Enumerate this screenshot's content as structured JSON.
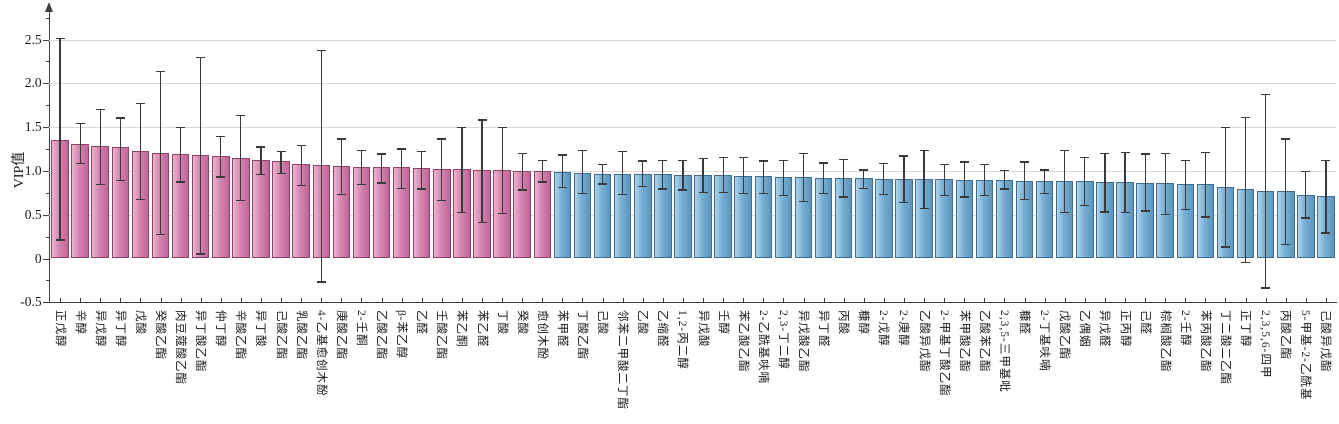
{
  "chart_data": {
    "type": "bar",
    "title": "",
    "xlabel": "",
    "ylabel": "VIP值",
    "ylim": [
      -0.5,
      2.9
    ],
    "grid": "horizontal",
    "legend_position": "none",
    "ytick_labels": [
      "-0.5",
      "0",
      "0.5",
      "1.0",
      "1.5",
      "2.0",
      "2.5"
    ],
    "yticks": [
      -0.5,
      0,
      0.5,
      1.0,
      1.5,
      2.0,
      2.5
    ],
    "error_bar_color": "#3a3a3a",
    "bar_groups": [
      {
        "name": "high-vip-pink",
        "color": "#d584b1",
        "color_light": "#eab5ce",
        "color_dark": "#c06699",
        "border_color": "#8f4168",
        "start_index": 0,
        "count": 25
      },
      {
        "name": "low-vip-blue",
        "color": "#76afd3",
        "color_light": "#b0d2e8",
        "color_dark": "#5d95bd",
        "border_color": "#3d6e94",
        "start_index": 25,
        "count": 39
      }
    ],
    "categories": [
      "正戊醇",
      "辛醇",
      "异戊醇",
      "异丁醇",
      "戊酸",
      "癸酸乙酯",
      "肉豆蔻酸乙酯",
      "异丁酸乙酯",
      "仲丁醇",
      "辛酸乙酯",
      "异丁酸",
      "己酸乙酯",
      "乳酸乙酯",
      "4-乙基愈创木酚",
      "庚酸乙酯",
      "2-壬酮",
      "乙酸乙酯",
      "β-苯乙醇",
      "乙醛",
      "壬酸乙酯",
      "苯乙酮",
      "苯乙醛",
      "丁酸",
      "癸酸",
      "愈创木酚",
      "苯甲醛",
      "丁酸乙酯",
      "己酸",
      "邻苯二甲酸二丁酯",
      "乙酸",
      "乙缩醛",
      "1,2-丙二醇",
      "异戊酸",
      "壬醇",
      "苯乙酸乙酯",
      "2-乙酰基呋喃",
      "2,3-丁二醇",
      "异戊酸乙酯",
      "异丁醛",
      "丙酸",
      "糠醇",
      "2-戊醇",
      "2-庚醇",
      "乙酸异戊酯",
      "2-甲基丁酸乙酯",
      "苯甲酸乙酯",
      "乙酸苯乙酯",
      "2,3,5-三甲基吡",
      "糠醛",
      "2-丁基呋喃",
      "戊酸乙酯",
      "乙偶姻",
      "异戊醛",
      "正丙醇",
      "己醛",
      "棕榈酸乙酯",
      "2-壬醇",
      "苯丙酸乙酯",
      "丁二酸二乙酯",
      "正丁醇",
      "2,3,5,6-四甲",
      "丙酸乙酯",
      "5-甲基-2-乙酰基",
      "己酸异戊酯"
    ],
    "values": [
      1.35,
      1.31,
      1.28,
      1.27,
      1.23,
      1.21,
      1.19,
      1.18,
      1.17,
      1.15,
      1.12,
      1.11,
      1.08,
      1.07,
      1.06,
      1.05,
      1.04,
      1.04,
      1.03,
      1.02,
      1.02,
      1.01,
      1.01,
      1.0,
      1.0,
      0.99,
      0.98,
      0.97,
      0.97,
      0.96,
      0.96,
      0.95,
      0.95,
      0.95,
      0.94,
      0.94,
      0.93,
      0.93,
      0.92,
      0.92,
      0.92,
      0.91,
      0.91,
      0.91,
      0.91,
      0.9,
      0.9,
      0.9,
      0.89,
      0.89,
      0.88,
      0.88,
      0.87,
      0.87,
      0.86,
      0.86,
      0.85,
      0.85,
      0.82,
      0.79,
      0.77,
      0.77,
      0.73,
      0.71
    ],
    "error_low": [
      0.22,
      1.09,
      0.85,
      0.9,
      0.68,
      0.28,
      0.88,
      0.06,
      0.94,
      0.67,
      0.97,
      0.98,
      0.84,
      -0.26,
      0.74,
      0.85,
      0.87,
      0.81,
      0.8,
      0.67,
      0.53,
      0.42,
      0.52,
      0.79,
      0.88,
      0.82,
      0.75,
      0.86,
      0.74,
      0.83,
      0.8,
      0.79,
      0.76,
      0.76,
      0.75,
      0.75,
      0.73,
      0.66,
      0.75,
      0.71,
      0.81,
      0.74,
      0.65,
      0.58,
      0.73,
      0.71,
      0.73,
      0.8,
      0.68,
      0.75,
      0.53,
      0.61,
      0.54,
      0.53,
      0.55,
      0.51,
      0.57,
      0.48,
      0.14,
      -0.04,
      -0.33,
      0.17,
      0.47,
      0.3
    ],
    "error_high": [
      2.52,
      1.55,
      1.71,
      1.61,
      1.78,
      2.14,
      1.5,
      2.3,
      1.4,
      1.64,
      1.28,
      1.23,
      1.3,
      2.38,
      1.37,
      1.24,
      1.2,
      1.26,
      1.23,
      1.37,
      1.5,
      1.59,
      1.5,
      1.21,
      1.13,
      1.19,
      1.24,
      1.08,
      1.23,
      1.12,
      1.13,
      1.13,
      1.15,
      1.16,
      1.16,
      1.12,
      1.13,
      1.21,
      1.1,
      1.14,
      1.02,
      1.09,
      1.18,
      1.24,
      1.08,
      1.11,
      1.08,
      1.01,
      1.11,
      1.02,
      1.24,
      1.16,
      1.21,
      1.22,
      1.2,
      1.21,
      1.13,
      1.22,
      1.5,
      1.62,
      1.88,
      1.37,
      1.0,
      1.13
    ]
  }
}
